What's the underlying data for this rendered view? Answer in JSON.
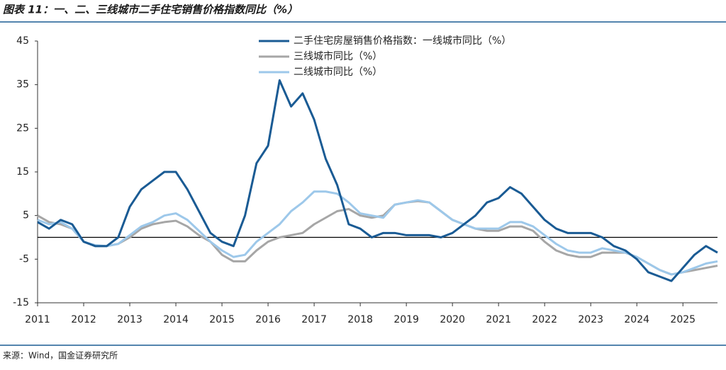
{
  "chart_data": {
    "type": "line",
    "title": "图表 11：一、二、三线城市二手住宅销售价格指数同比（%）",
    "source": "来源：Wind，国金证券研究所",
    "x": [
      2011,
      2011.25,
      2011.5,
      2011.75,
      2012,
      2012.25,
      2012.5,
      2012.75,
      2013,
      2013.25,
      2013.5,
      2013.75,
      2014,
      2014.25,
      2014.5,
      2014.75,
      2015,
      2015.25,
      2015.5,
      2015.75,
      2016,
      2016.25,
      2016.5,
      2016.75,
      2017,
      2017.25,
      2017.5,
      2017.75,
      2018,
      2018.25,
      2018.5,
      2018.75,
      2019,
      2019.25,
      2019.5,
      2019.75,
      2020,
      2020.25,
      2020.5,
      2020.75,
      2021,
      2021.25,
      2021.5,
      2021.75,
      2022,
      2022.25,
      2022.5,
      2022.75,
      2023,
      2023.25,
      2023.5,
      2023.75,
      2024,
      2024.25,
      2024.5,
      2024.75,
      2025,
      2025.25,
      2025.5,
      2025.75
    ],
    "series": [
      {
        "name": "二手住宅房屋销售价格指数：一线城市同比（%）",
        "color": "#1a5b94",
        "width": 3,
        "values": [
          3.5,
          2,
          4,
          3,
          -1,
          -2,
          -2,
          0,
          7,
          11,
          13,
          15,
          15,
          11,
          6,
          1,
          -1,
          -2,
          5,
          17,
          21,
          36,
          30,
          33,
          27,
          18,
          12,
          3,
          2,
          0,
          1,
          1,
          0.5,
          0.5,
          0.5,
          0,
          1,
          3,
          5,
          8,
          9,
          11.5,
          10,
          7,
          4,
          2,
          1,
          1,
          1,
          0,
          -2,
          -3,
          -5,
          -8,
          -9,
          -10,
          -7,
          -4,
          -2,
          -3.5
        ]
      },
      {
        "name": "三线城市同比（%）",
        "color": "#a6a6a6",
        "width": 3,
        "values": [
          5,
          3.5,
          3,
          2,
          -1,
          -2,
          -2,
          -1.5,
          0,
          2,
          3,
          3.5,
          3.8,
          2.5,
          0.5,
          -1,
          -4,
          -5.5,
          -5.5,
          -3,
          -1,
          0,
          0.5,
          1,
          3,
          4.5,
          6,
          6.5,
          5,
          4.5,
          5,
          7.5,
          8,
          8.3,
          8,
          6,
          4,
          3,
          2,
          1.5,
          1.5,
          2.5,
          2.5,
          1.5,
          -1,
          -3,
          -4,
          -4.5,
          -4.5,
          -3.5,
          -3.5,
          -3.5,
          -4.5,
          -6,
          -7.5,
          -8.5,
          -8,
          -7.5,
          -7,
          -6.5
        ]
      },
      {
        "name": "二线城市同比（%）",
        "color": "#9dc8ea",
        "width": 3,
        "values": [
          4,
          3,
          3.5,
          2,
          -1,
          -1.8,
          -2,
          -1.5,
          0.5,
          2.5,
          3.5,
          5,
          5.5,
          4,
          1.5,
          -1,
          -3,
          -4.5,
          -4,
          -1,
          1,
          3,
          6,
          8,
          10.5,
          10.5,
          10,
          8,
          5.5,
          5,
          4.5,
          7.5,
          8,
          8.5,
          8,
          6,
          4,
          3,
          2,
          2,
          2,
          3.5,
          3.5,
          2.5,
          0.5,
          -1.5,
          -3,
          -3.5,
          -3.5,
          -2.5,
          -3,
          -3.5,
          -4.5,
          -6,
          -7.5,
          -8.5,
          -8,
          -7,
          -6,
          -5.5
        ]
      }
    ],
    "xlim": [
      2011,
      2025.75
    ],
    "xticks": [
      2011,
      2012,
      2013,
      2014,
      2015,
      2016,
      2017,
      2018,
      2019,
      2020,
      2021,
      2022,
      2023,
      2024,
      2025
    ],
    "ylim": [
      -15,
      45
    ],
    "yticks": [
      -15,
      -5,
      5,
      15,
      25,
      35,
      45
    ]
  }
}
